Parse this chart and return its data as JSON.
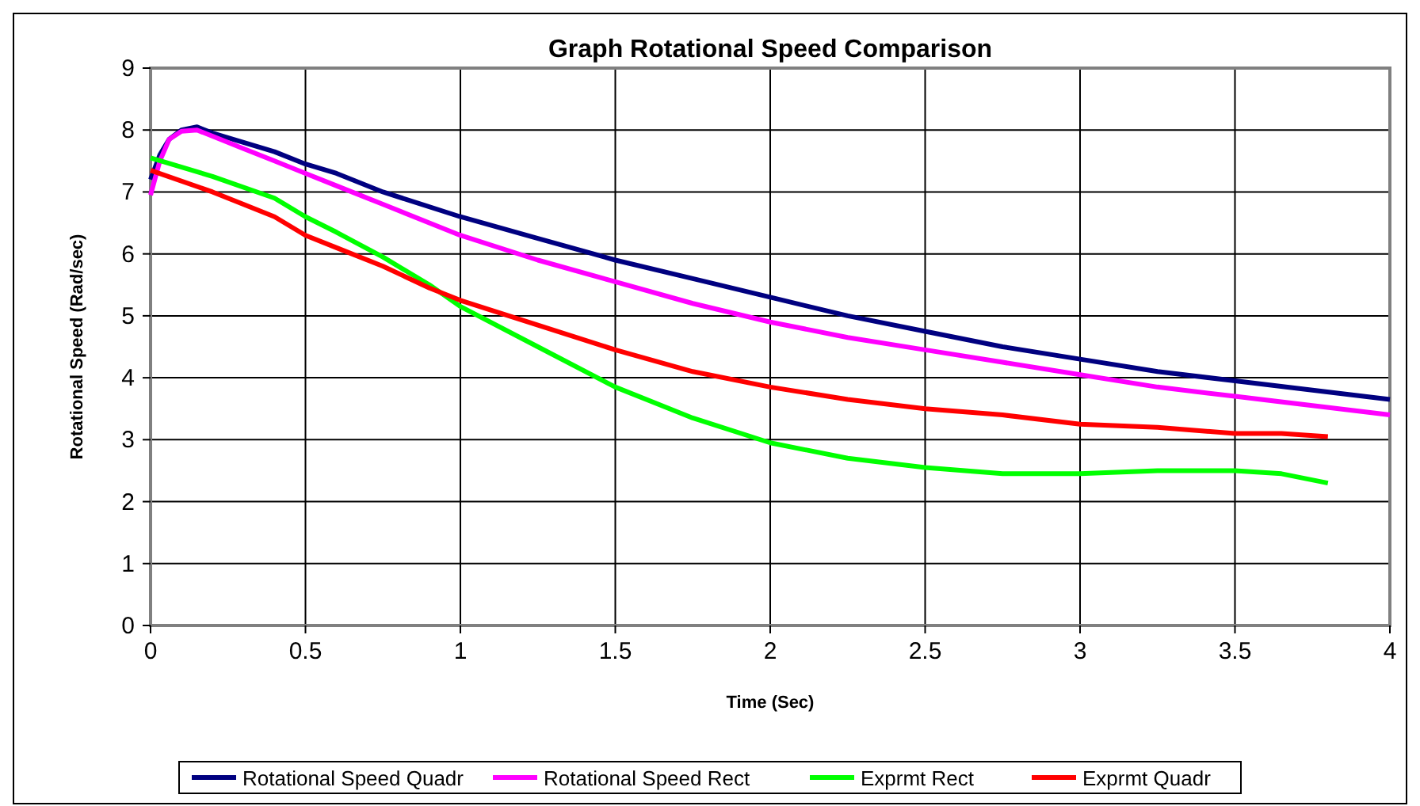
{
  "chart_data": {
    "type": "line",
    "title": "Graph Rotational Speed Comparison",
    "xlabel": "Time (Sec)",
    "ylabel": "Rotational Speed (Rad/sec)",
    "xlim": [
      0,
      4
    ],
    "xticks": [
      0,
      0.5,
      1,
      1.5,
      2,
      2.5,
      3,
      3.5,
      4
    ],
    "ylim": [
      0,
      9
    ],
    "yticks": [
      0,
      1,
      2,
      3,
      4,
      5,
      6,
      7,
      8,
      9
    ],
    "grid": true,
    "legend": "bottom",
    "marker": "none",
    "line_style": "solid",
    "series": [
      {
        "name": "Rotational Speed Quadr",
        "color": "#000080",
        "x": [
          0,
          0.03,
          0.06,
          0.1,
          0.15,
          0.2,
          0.3,
          0.4,
          0.5,
          0.6,
          0.75,
          1,
          1.25,
          1.5,
          1.75,
          2,
          2.25,
          2.5,
          2.75,
          3,
          3.25,
          3.5,
          3.75,
          4
        ],
        "values": [
          7.2,
          7.6,
          7.85,
          8.0,
          8.05,
          7.95,
          7.8,
          7.65,
          7.45,
          7.3,
          7.0,
          6.6,
          6.25,
          5.9,
          5.6,
          5.3,
          5.0,
          4.75,
          4.5,
          4.3,
          4.1,
          3.95,
          3.8,
          3.65
        ]
      },
      {
        "name": "Rotational Speed Rect",
        "color": "#ff00ff",
        "x": [
          0,
          0.03,
          0.06,
          0.1,
          0.15,
          0.2,
          0.3,
          0.4,
          0.5,
          0.6,
          0.75,
          1,
          1.25,
          1.5,
          1.75,
          2,
          2.25,
          2.5,
          2.75,
          3,
          3.25,
          3.5,
          3.75,
          4
        ],
        "values": [
          6.95,
          7.5,
          7.85,
          7.98,
          8.0,
          7.9,
          7.7,
          7.5,
          7.3,
          7.1,
          6.8,
          6.3,
          5.9,
          5.55,
          5.2,
          4.9,
          4.65,
          4.45,
          4.25,
          4.05,
          3.85,
          3.7,
          3.55,
          3.4
        ]
      },
      {
        "name": "Exprmt Rect",
        "color": "#00ff00",
        "x": [
          0,
          0.2,
          0.4,
          0.5,
          0.6,
          0.75,
          0.9,
          1,
          1.25,
          1.5,
          1.75,
          2,
          2.25,
          2.5,
          2.75,
          3,
          3.25,
          3.5,
          3.65,
          3.8
        ],
        "values": [
          7.55,
          7.25,
          6.9,
          6.6,
          6.35,
          5.95,
          5.5,
          5.15,
          4.5,
          3.85,
          3.35,
          2.95,
          2.7,
          2.55,
          2.45,
          2.45,
          2.5,
          2.5,
          2.45,
          2.3
        ]
      },
      {
        "name": "Exprmt Quadr",
        "color": "#ff0000",
        "x": [
          0,
          0.2,
          0.4,
          0.5,
          0.6,
          0.75,
          0.9,
          1,
          1.25,
          1.5,
          1.75,
          2,
          2.25,
          2.5,
          2.75,
          3,
          3.25,
          3.5,
          3.65,
          3.8
        ],
        "values": [
          7.35,
          7.0,
          6.6,
          6.3,
          6.1,
          5.8,
          5.45,
          5.25,
          4.85,
          4.45,
          4.1,
          3.85,
          3.65,
          3.5,
          3.4,
          3.25,
          3.2,
          3.1,
          3.1,
          3.05
        ]
      }
    ]
  }
}
